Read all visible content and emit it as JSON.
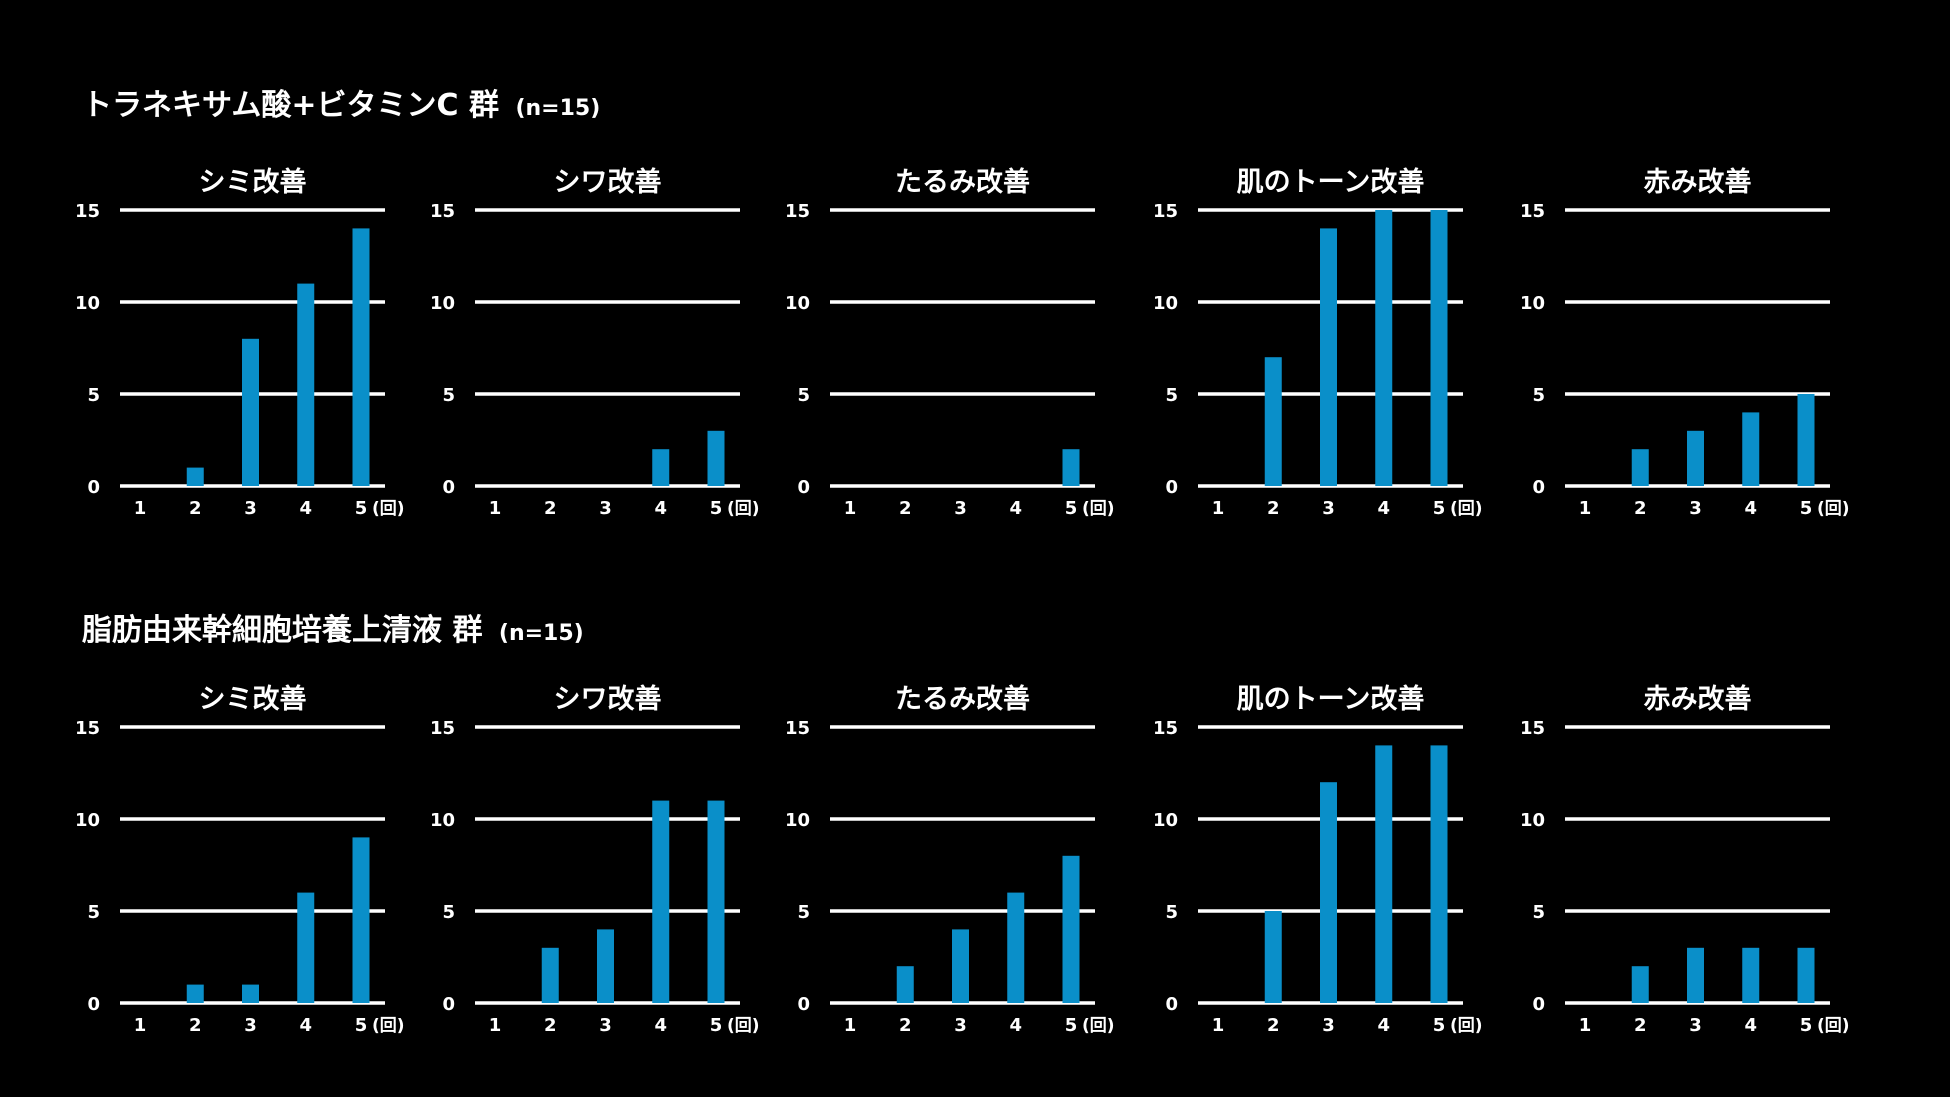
{
  "unit": "(回)",
  "colors": {
    "bar": "#0a8fc9",
    "grid": "#ffffff",
    "background": "#000000",
    "text": "#ffffff"
  },
  "groups": [
    {
      "title": "トラネキサム酸+ビタミンC 群",
      "n": "(n=15)"
    },
    {
      "title": "脂肪由来幹細胞培養上清液 群",
      "n": "(n=15)"
    }
  ],
  "chart_data": [
    {
      "group": 0,
      "type": "bar",
      "title": "シミ改善",
      "categories": [
        "1",
        "2",
        "3",
        "4",
        "5"
      ],
      "values": [
        0,
        1,
        8,
        11,
        14
      ],
      "ylim": [
        0,
        15
      ],
      "yticks": [
        0,
        5,
        10,
        15
      ],
      "grid": true,
      "xlabel": "",
      "ylabel": ""
    },
    {
      "group": 0,
      "type": "bar",
      "title": "シワ改善",
      "categories": [
        "1",
        "2",
        "3",
        "4",
        "5"
      ],
      "values": [
        0,
        0,
        0,
        2,
        3
      ],
      "ylim": [
        0,
        15
      ],
      "yticks": [
        0,
        5,
        10,
        15
      ],
      "grid": true,
      "xlabel": "",
      "ylabel": ""
    },
    {
      "group": 0,
      "type": "bar",
      "title": "たるみ改善",
      "categories": [
        "1",
        "2",
        "3",
        "4",
        "5"
      ],
      "values": [
        0,
        0,
        0,
        0,
        2
      ],
      "ylim": [
        0,
        15
      ],
      "yticks": [
        0,
        5,
        10,
        15
      ],
      "grid": true,
      "xlabel": "",
      "ylabel": ""
    },
    {
      "group": 0,
      "type": "bar",
      "title": "肌のトーン改善",
      "categories": [
        "1",
        "2",
        "3",
        "4",
        "5"
      ],
      "values": [
        0,
        7,
        14,
        15,
        15
      ],
      "ylim": [
        0,
        15
      ],
      "yticks": [
        0,
        5,
        10,
        15
      ],
      "grid": true,
      "xlabel": "",
      "ylabel": ""
    },
    {
      "group": 0,
      "type": "bar",
      "title": "赤み改善",
      "categories": [
        "1",
        "2",
        "3",
        "4",
        "5"
      ],
      "values": [
        0,
        2,
        3,
        4,
        5
      ],
      "ylim": [
        0,
        15
      ],
      "yticks": [
        0,
        5,
        10,
        15
      ],
      "grid": true,
      "xlabel": "",
      "ylabel": ""
    },
    {
      "group": 1,
      "type": "bar",
      "title": "シミ改善",
      "categories": [
        "1",
        "2",
        "3",
        "4",
        "5"
      ],
      "values": [
        0,
        1,
        1,
        6,
        9
      ],
      "ylim": [
        0,
        15
      ],
      "yticks": [
        0,
        5,
        10,
        15
      ],
      "grid": true,
      "xlabel": "",
      "ylabel": ""
    },
    {
      "group": 1,
      "type": "bar",
      "title": "シワ改善",
      "categories": [
        "1",
        "2",
        "3",
        "4",
        "5"
      ],
      "values": [
        0,
        3,
        4,
        11,
        11
      ],
      "ylim": [
        0,
        15
      ],
      "yticks": [
        0,
        5,
        10,
        15
      ],
      "grid": true,
      "xlabel": "",
      "ylabel": ""
    },
    {
      "group": 1,
      "type": "bar",
      "title": "たるみ改善",
      "categories": [
        "1",
        "2",
        "3",
        "4",
        "5"
      ],
      "values": [
        0,
        2,
        4,
        6,
        8
      ],
      "ylim": [
        0,
        15
      ],
      "yticks": [
        0,
        5,
        10,
        15
      ],
      "grid": true,
      "xlabel": "",
      "ylabel": ""
    },
    {
      "group": 1,
      "type": "bar",
      "title": "肌のトーン改善",
      "categories": [
        "1",
        "2",
        "3",
        "4",
        "5"
      ],
      "values": [
        0,
        5,
        12,
        14,
        14
      ],
      "ylim": [
        0,
        15
      ],
      "yticks": [
        0,
        5,
        10,
        15
      ],
      "grid": true,
      "xlabel": "",
      "ylabel": ""
    },
    {
      "group": 1,
      "type": "bar",
      "title": "赤み改善",
      "categories": [
        "1",
        "2",
        "3",
        "4",
        "5"
      ],
      "values": [
        0,
        2,
        3,
        3,
        3
      ],
      "ylim": [
        0,
        15
      ],
      "yticks": [
        0,
        5,
        10,
        15
      ],
      "grid": true,
      "xlabel": "",
      "ylabel": ""
    }
  ]
}
